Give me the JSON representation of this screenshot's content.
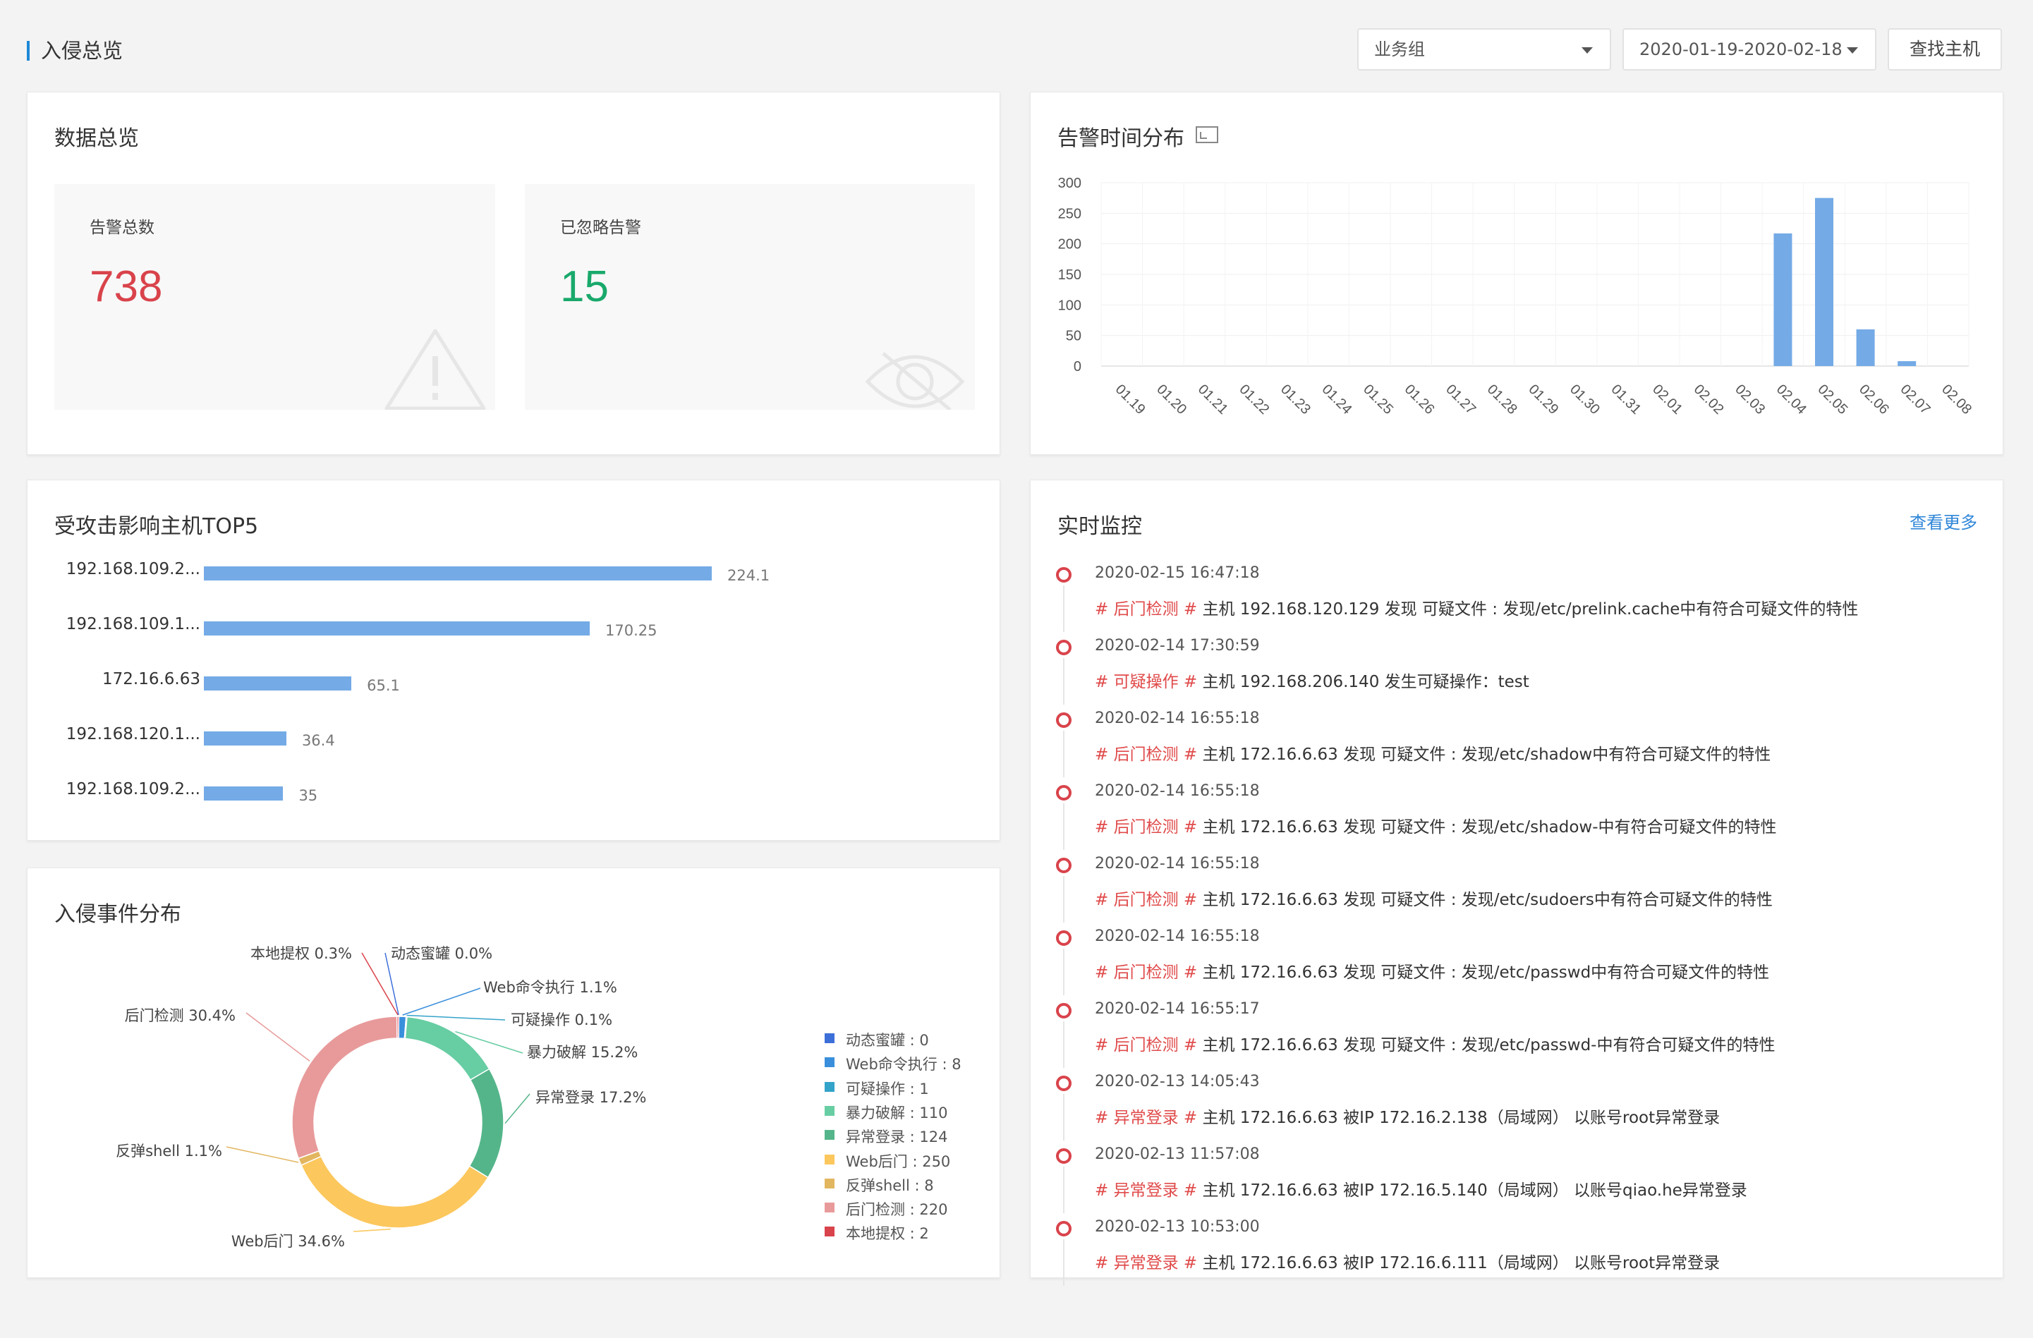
{
  "header": {
    "title": "入侵总览",
    "group_select": "业务组",
    "date_range": "2020-01-19-2020-02-18",
    "find_host_label": "查找主机"
  },
  "overview": {
    "title": "数据总览",
    "total_alerts_label": "告警总数",
    "total_alerts_value": "738",
    "ignored_alerts_label": "已忽略告警",
    "ignored_alerts_value": "15",
    "colors": {
      "total": "#d9434b",
      "ignored": "#19a96b"
    }
  },
  "alert_time": {
    "title": "告警时间分布"
  },
  "top_hosts": {
    "title": "受攻击影响主机TOP5"
  },
  "event_dist": {
    "title": "入侵事件分布"
  },
  "realtime": {
    "title": "实时监控",
    "more_label": "查看更多",
    "items": [
      {
        "time": "2020-02-15 16:47:18",
        "tag": "# 后门检测 #",
        "text": " 主机 192.168.120.129 发现 可疑文件 : 发现/etc/prelink.cache中有符合可疑文件的特性"
      },
      {
        "time": "2020-02-14 17:30:59",
        "tag": "# 可疑操作 #",
        "text": " 主机 192.168.206.140 发生可疑操作：test"
      },
      {
        "time": "2020-02-14 16:55:18",
        "tag": "# 后门检测 #",
        "text": " 主机 172.16.6.63 发现 可疑文件 : 发现/etc/shadow中有符合可疑文件的特性"
      },
      {
        "time": "2020-02-14 16:55:18",
        "tag": "# 后门检测 #",
        "text": " 主机 172.16.6.63 发现 可疑文件 : 发现/etc/shadow-中有符合可疑文件的特性"
      },
      {
        "time": "2020-02-14 16:55:18",
        "tag": "# 后门检测 #",
        "text": " 主机 172.16.6.63 发现 可疑文件 : 发现/etc/sudoers中有符合可疑文件的特性"
      },
      {
        "time": "2020-02-14 16:55:18",
        "tag": "# 后门检测 #",
        "text": " 主机 172.16.6.63 发现 可疑文件 : 发现/etc/passwd中有符合可疑文件的特性"
      },
      {
        "time": "2020-02-14 16:55:17",
        "tag": "# 后门检测 #",
        "text": " 主机 172.16.6.63 发现 可疑文件 : 发现/etc/passwd-中有符合可疑文件的特性"
      },
      {
        "time": "2020-02-13 14:05:43",
        "tag": "# 异常登录 #",
        "text": " 主机 172.16.6.63 被IP 172.16.2.138（局域网） 以账号root异常登录"
      },
      {
        "time": "2020-02-13 11:57:08",
        "tag": "# 异常登录 #",
        "text": " 主机 172.16.6.63 被IP 172.16.5.140（局域网） 以账号qiao.he异常登录"
      },
      {
        "time": "2020-02-13 10:53:00",
        "tag": "# 异常登录 #",
        "text": " 主机 172.16.6.63 被IP 172.16.6.111（局域网） 以账号root异常登录"
      }
    ]
  },
  "chart_data": [
    {
      "type": "bar",
      "categories": [
        "01.19",
        "01.20",
        "01.21",
        "01.22",
        "01.23",
        "01.24",
        "01.25",
        "01.26",
        "01.27",
        "01.28",
        "01.29",
        "01.30",
        "01.31",
        "02.01",
        "02.02",
        "02.03",
        "02.04",
        "02.05",
        "02.06",
        "02.07",
        "02.08"
      ],
      "values": [
        0,
        0,
        0,
        0,
        0,
        0,
        0,
        0,
        0,
        0,
        0,
        0,
        0,
        0,
        0,
        0,
        217,
        275,
        60,
        8,
        0
      ],
      "yticks": [
        0,
        50,
        100,
        150,
        200,
        250,
        300
      ],
      "ylim": [
        0,
        300
      ],
      "color": "#74aae6",
      "grid": true
    },
    {
      "type": "bar",
      "orientation": "horizontal",
      "categories": [
        "192.168.109.2...",
        "192.168.109.1...",
        "172.16.6.63",
        "192.168.120.1...",
        "192.168.109.2..."
      ],
      "values": [
        224.1,
        170.25,
        65.1,
        36.4,
        35
      ],
      "value_labels": [
        "224.1",
        "170.25",
        "65.1",
        "36.4",
        "35"
      ],
      "color": "#74aae6"
    },
    {
      "type": "pie",
      "variant": "donut",
      "slices": [
        {
          "name": "动态蜜罐",
          "value": 0,
          "percent_label": "动态蜜罐 0.0%",
          "legend": "动态蜜罐 : 0",
          "color": "#3d6fd9"
        },
        {
          "name": "Web命令执行",
          "value": 8,
          "percent_label": "Web命令执行 1.1%",
          "legend": "Web命令执行 : 8",
          "color": "#3a8fdc"
        },
        {
          "name": "可疑操作",
          "value": 1,
          "percent_label": "可疑操作 0.1%",
          "legend": "可疑操作 : 1",
          "color": "#34a3c9"
        },
        {
          "name": "暴力破解",
          "value": 110,
          "percent_label": "暴力破解 15.2%",
          "legend": "暴力破解 : 110",
          "color": "#67cda3"
        },
        {
          "name": "异常登录",
          "value": 124,
          "percent_label": "异常登录 17.2%",
          "legend": "异常登录 : 124",
          "color": "#55b58a"
        },
        {
          "name": "Web后门",
          "value": 250,
          "percent_label": "Web后门 34.6%",
          "legend": "Web后门 : 250",
          "color": "#fcc75d"
        },
        {
          "name": "反弹shell",
          "value": 8,
          "percent_label": "反弹shell 1.1%",
          "legend": "反弹shell : 8",
          "color": "#e2b65f"
        },
        {
          "name": "后门检测",
          "value": 220,
          "percent_label": "后门检测 30.4%",
          "legend": "后门检测 : 220",
          "color": "#e89a9a"
        },
        {
          "name": "本地提权",
          "value": 2,
          "percent_label": "本地提权 0.3%",
          "legend": "本地提权 : 2",
          "color": "#d9434b"
        }
      ]
    }
  ]
}
